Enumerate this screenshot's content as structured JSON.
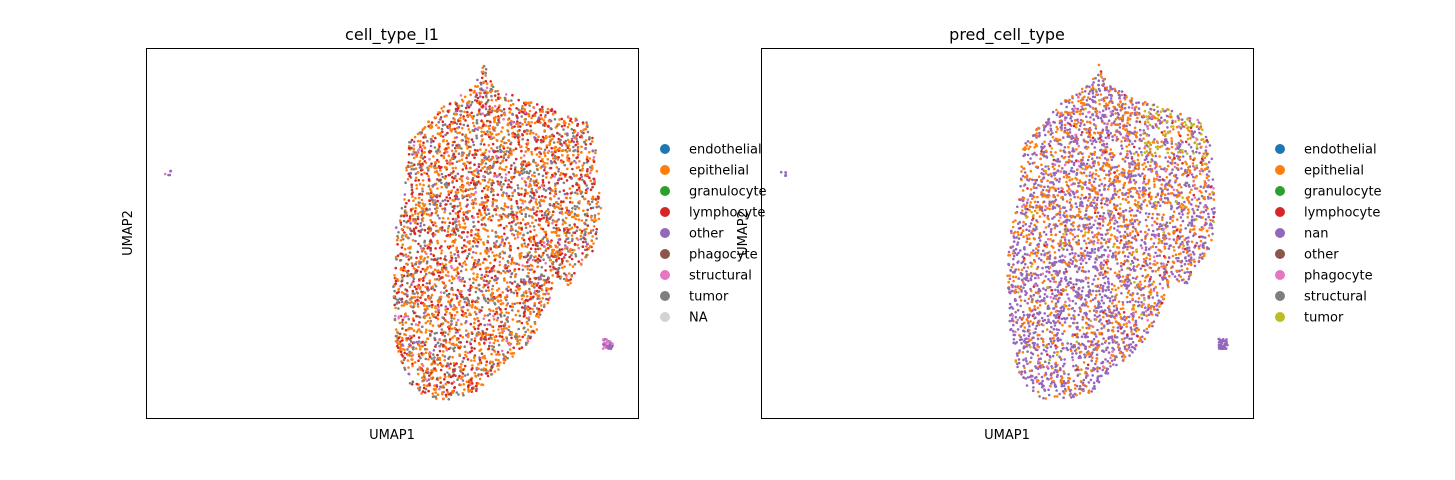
{
  "chart_data": [
    {
      "type": "scatter",
      "title": "cell_type_l1",
      "xlabel": "UMAP1",
      "ylabel": "UMAP2",
      "grid": false,
      "legend_position": "right",
      "legend": [
        {
          "name": "endothelial",
          "color": "#1f77b4"
        },
        {
          "name": "epithelial",
          "color": "#ff7f0e"
        },
        {
          "name": "granulocyte",
          "color": "#2ca02c"
        },
        {
          "name": "lymphocyte",
          "color": "#d62728"
        },
        {
          "name": "other",
          "color": "#9467bd"
        },
        {
          "name": "phagocyte",
          "color": "#8c564b"
        },
        {
          "name": "structural",
          "color": "#e377c2"
        },
        {
          "name": "tumor",
          "color": "#7f7f7f"
        },
        {
          "name": "NA",
          "color": "#d3d3d3"
        }
      ],
      "mixture": {
        "epithelial": 0.42,
        "lymphocyte": 0.26,
        "tumor": 0.2,
        "other": 0.06,
        "structural": 0.04,
        "phagocyte": 0.02
      }
    },
    {
      "type": "scatter",
      "title": "pred_cell_type",
      "xlabel": "UMAP1",
      "ylabel": "UMAP2",
      "grid": false,
      "legend_position": "right",
      "legend": [
        {
          "name": "endothelial",
          "color": "#1f77b4"
        },
        {
          "name": "epithelial",
          "color": "#ff7f0e"
        },
        {
          "name": "granulocyte",
          "color": "#2ca02c"
        },
        {
          "name": "lymphocyte",
          "color": "#d62728"
        },
        {
          "name": "nan",
          "color": "#9467bd"
        },
        {
          "name": "other",
          "color": "#8c564b"
        },
        {
          "name": "phagocyte",
          "color": "#e377c2"
        },
        {
          "name": "structural",
          "color": "#7f7f7f"
        },
        {
          "name": "tumor",
          "color": "#bcbd22"
        }
      ],
      "mixture": {
        "nan": 0.5,
        "epithelial": 0.4,
        "phagocyte": 0.04,
        "lymphocyte": 0.03,
        "tumor": 0.02,
        "structural": 0.01
      }
    }
  ]
}
